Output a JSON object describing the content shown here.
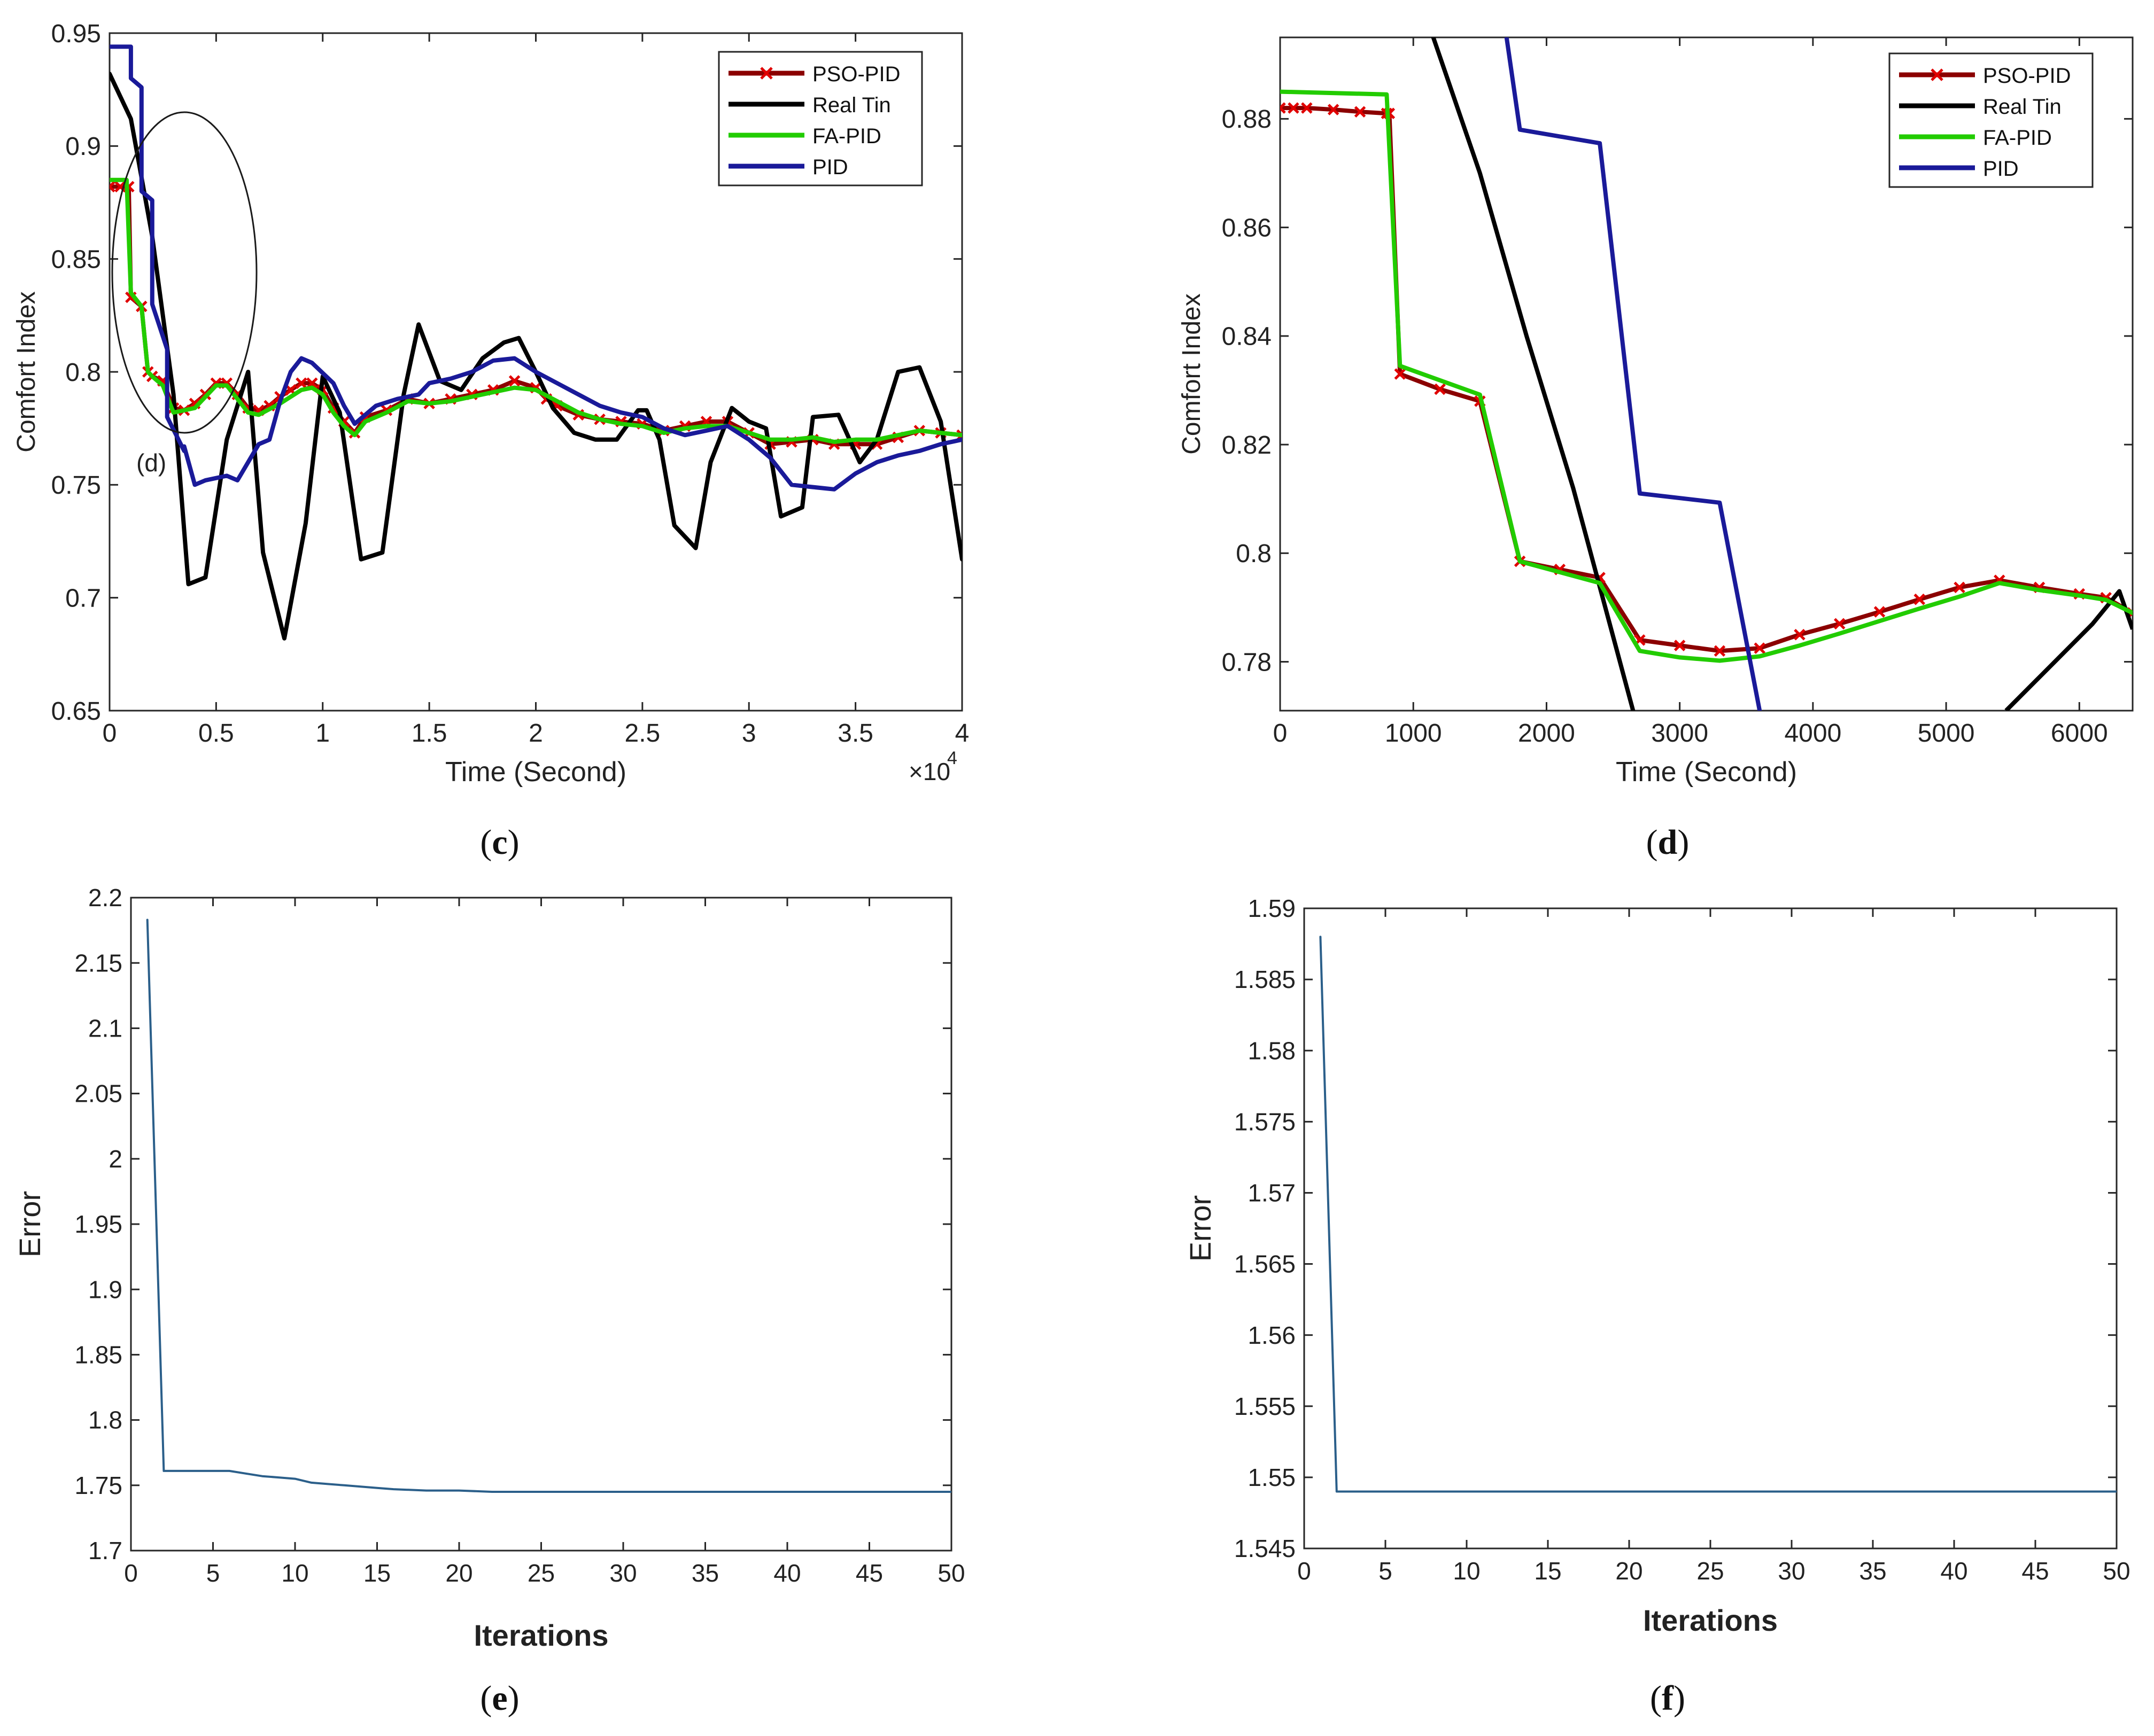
{
  "figure": {
    "panels": [
      {
        "id": "c",
        "caption_open": "(",
        "caption_letter": "c",
        "caption_close": ")"
      },
      {
        "id": "d",
        "caption_open": "(",
        "caption_letter": "d",
        "caption_close": ")"
      },
      {
        "id": "e",
        "caption_open": "(",
        "caption_letter": "e",
        "caption_close": ")"
      },
      {
        "id": "f",
        "caption_open": "(",
        "caption_letter": "f",
        "caption_close": ")"
      }
    ]
  },
  "chart_data": [
    {
      "panel": "c",
      "type": "line",
      "title": "",
      "xlabel": "Time (Second)",
      "ylabel": "Comfort Index",
      "x_multiplier_label": "×10",
      "x_multiplier_exponent": "4",
      "xlim": [
        0,
        4
      ],
      "ylim": [
        0.65,
        0.95
      ],
      "xticks": [
        0,
        0.5,
        1,
        1.5,
        2,
        2.5,
        3,
        3.5,
        4
      ],
      "xtick_labels": [
        "0",
        "0.5",
        "1",
        "1.5",
        "2",
        "2.5",
        "3",
        "3.5",
        "4"
      ],
      "yticks": [
        0.65,
        0.7,
        0.75,
        0.8,
        0.85,
        0.9,
        0.95
      ],
      "ytick_labels": [
        "0.65",
        "0.7",
        "0.75",
        "0.8",
        "0.85",
        "0.9",
        "0.95"
      ],
      "legend_position": "top-right",
      "annotation": "(d)",
      "series": [
        {
          "name": "PSO-PID",
          "color": "#8b0000",
          "marker": "x",
          "marker_color": "#e00000",
          "x": [
            0,
            0.05,
            0.09,
            0.1,
            0.15,
            0.18,
            0.2,
            0.25,
            0.3,
            0.35,
            0.4,
            0.45,
            0.5,
            0.55,
            0.6,
            0.65,
            0.7,
            0.75,
            0.8,
            0.85,
            0.9,
            0.95,
            1.0,
            1.05,
            1.1,
            1.15,
            1.2,
            1.3,
            1.4,
            1.5,
            1.6,
            1.7,
            1.8,
            1.9,
            2.0,
            2.05,
            2.1,
            2.2,
            2.3,
            2.4,
            2.5,
            2.6,
            2.7,
            2.8,
            2.9,
            3.0,
            3.1,
            3.2,
            3.3,
            3.4,
            3.5,
            3.6,
            3.7,
            3.8,
            3.9,
            4.0
          ],
          "y": [
            0.882,
            0.882,
            0.882,
            0.833,
            0.829,
            0.8,
            0.798,
            0.796,
            0.784,
            0.783,
            0.786,
            0.79,
            0.795,
            0.795,
            0.79,
            0.784,
            0.783,
            0.785,
            0.789,
            0.792,
            0.795,
            0.795,
            0.792,
            0.784,
            0.778,
            0.773,
            0.78,
            0.783,
            0.788,
            0.786,
            0.788,
            0.79,
            0.792,
            0.796,
            0.793,
            0.788,
            0.785,
            0.781,
            0.779,
            0.778,
            0.777,
            0.774,
            0.776,
            0.778,
            0.778,
            0.773,
            0.768,
            0.769,
            0.77,
            0.768,
            0.768,
            0.768,
            0.771,
            0.774,
            0.773,
            0.772
          ]
        },
        {
          "name": "Real Tin",
          "color": "#000000",
          "x": [
            0,
            0.1,
            0.2,
            0.3,
            0.37,
            0.45,
            0.55,
            0.65,
            0.72,
            0.82,
            0.92,
            1.0,
            1.08,
            1.18,
            1.28,
            1.38,
            1.45,
            1.55,
            1.65,
            1.75,
            1.85,
            1.92,
            2.0,
            2.08,
            2.18,
            2.28,
            2.38,
            2.48,
            2.52,
            2.58,
            2.65,
            2.75,
            2.82,
            2.92,
            3.0,
            3.08,
            3.15,
            3.25,
            3.3,
            3.42,
            3.52,
            3.6,
            3.7,
            3.8,
            3.9,
            4.0
          ],
          "y": [
            0.932,
            0.912,
            0.86,
            0.79,
            0.706,
            0.709,
            0.77,
            0.8,
            0.72,
            0.682,
            0.733,
            0.798,
            0.782,
            0.717,
            0.72,
            0.79,
            0.821,
            0.796,
            0.792,
            0.806,
            0.813,
            0.815,
            0.8,
            0.784,
            0.773,
            0.77,
            0.77,
            0.783,
            0.783,
            0.77,
            0.732,
            0.722,
            0.76,
            0.784,
            0.778,
            0.775,
            0.736,
            0.74,
            0.78,
            0.781,
            0.76,
            0.77,
            0.8,
            0.802,
            0.778,
            0.717
          ]
        },
        {
          "name": "FA-PID",
          "color": "#22cc00",
          "x": [
            0,
            0.08,
            0.1,
            0.15,
            0.18,
            0.2,
            0.25,
            0.3,
            0.4,
            0.5,
            0.55,
            0.6,
            0.65,
            0.7,
            0.8,
            0.9,
            0.95,
            1.0,
            1.05,
            1.1,
            1.15,
            1.2,
            1.3,
            1.4,
            1.5,
            1.6,
            1.7,
            1.8,
            1.9,
            2.0,
            2.1,
            2.2,
            2.3,
            2.4,
            2.5,
            2.6,
            2.7,
            2.8,
            2.9,
            3.0,
            3.1,
            3.2,
            3.3,
            3.4,
            3.5,
            3.6,
            3.7,
            3.8,
            3.9,
            4.0
          ],
          "y": [
            0.885,
            0.885,
            0.835,
            0.829,
            0.8,
            0.798,
            0.794,
            0.782,
            0.784,
            0.794,
            0.794,
            0.788,
            0.782,
            0.781,
            0.786,
            0.792,
            0.793,
            0.79,
            0.782,
            0.776,
            0.772,
            0.778,
            0.782,
            0.787,
            0.786,
            0.787,
            0.789,
            0.791,
            0.793,
            0.792,
            0.787,
            0.782,
            0.779,
            0.777,
            0.776,
            0.773,
            0.775,
            0.776,
            0.776,
            0.773,
            0.77,
            0.77,
            0.771,
            0.769,
            0.77,
            0.77,
            0.772,
            0.774,
            0.773,
            0.772
          ]
        },
        {
          "name": "PID",
          "color": "#1a1a99",
          "x": [
            0,
            0.1,
            0.1,
            0.15,
            0.15,
            0.2,
            0.2,
            0.27,
            0.27,
            0.35,
            0.35,
            0.4,
            0.45,
            0.5,
            0.55,
            0.6,
            0.7,
            0.75,
            0.8,
            0.85,
            0.9,
            0.95,
            1.05,
            1.1,
            1.15,
            1.25,
            1.35,
            1.45,
            1.5,
            1.6,
            1.7,
            1.8,
            1.9,
            2.0,
            2.1,
            2.2,
            2.3,
            2.4,
            2.5,
            2.6,
            2.7,
            2.8,
            2.9,
            3.0,
            3.1,
            3.2,
            3.3,
            3.4,
            3.5,
            3.6,
            3.7,
            3.8,
            3.9,
            4.0
          ],
          "y": [
            0.944,
            0.944,
            0.93,
            0.926,
            0.88,
            0.876,
            0.83,
            0.81,
            0.78,
            0.765,
            0.767,
            0.75,
            0.752,
            0.753,
            0.754,
            0.752,
            0.768,
            0.77,
            0.787,
            0.8,
            0.806,
            0.804,
            0.795,
            0.785,
            0.777,
            0.785,
            0.788,
            0.79,
            0.795,
            0.797,
            0.8,
            0.805,
            0.806,
            0.8,
            0.795,
            0.79,
            0.785,
            0.782,
            0.78,
            0.775,
            0.772,
            0.774,
            0.776,
            0.77,
            0.762,
            0.75,
            0.749,
            0.748,
            0.755,
            0.76,
            0.763,
            0.765,
            0.768,
            0.77
          ]
        }
      ]
    },
    {
      "panel": "d",
      "type": "line",
      "title": "",
      "xlabel": "Time (Second)",
      "ylabel": "Comfort Index",
      "xlim": [
        0,
        6400
      ],
      "ylim": [
        0.771,
        0.895
      ],
      "xticks": [
        0,
        1000,
        2000,
        3000,
        4000,
        5000,
        6000
      ],
      "xtick_labels": [
        "0",
        "1000",
        "2000",
        "3000",
        "4000",
        "5000",
        "6000"
      ],
      "yticks": [
        0.78,
        0.8,
        0.82,
        0.84,
        0.86,
        0.88
      ],
      "ytick_labels": [
        "0.78",
        "0.8",
        "0.82",
        "0.84",
        "0.86",
        "0.88"
      ],
      "legend_position": "top-right",
      "series": [
        {
          "name": "PSO-PID",
          "color": "#8b0000",
          "marker": "x",
          "marker_color": "#e00000",
          "x": [
            0,
            100,
            200,
            400,
            600,
            800,
            820,
            900,
            1200,
            1500,
            1800,
            2100,
            2400,
            2700,
            3000,
            3300,
            3600,
            3900,
            4200,
            4500,
            4800,
            5100,
            5400,
            5700,
            6000,
            6200,
            6400
          ],
          "y": [
            0.882,
            0.882,
            0.882,
            0.8817,
            0.8813,
            0.881,
            0.881,
            0.833,
            0.8302,
            0.828,
            0.7985,
            0.797,
            0.7955,
            0.784,
            0.783,
            0.782,
            0.7825,
            0.785,
            0.787,
            0.7892,
            0.7915,
            0.7937,
            0.795,
            0.7937,
            0.7925,
            0.7918,
            0.789
          ]
        },
        {
          "name": "Real Tin",
          "color": "#000000",
          "x": [
            1150,
            1500,
            1850,
            2200,
            2650
          ],
          "y": [
            0.895,
            0.87,
            0.84,
            0.812,
            0.771
          ],
          "x2": [
            5450,
            6100,
            6300,
            6400
          ],
          "y2": [
            0.771,
            0.787,
            0.793,
            0.786
          ]
        },
        {
          "name": "FA-PID",
          "color": "#22cc00",
          "x": [
            0,
            800,
            900,
            1500,
            1800,
            2400,
            2700,
            3000,
            3300,
            3600,
            3900,
            4200,
            4500,
            4800,
            5100,
            5400,
            5700,
            6000,
            6200,
            6400
          ],
          "y": [
            0.885,
            0.8845,
            0.8345,
            0.8292,
            0.7985,
            0.7945,
            0.782,
            0.7808,
            0.7802,
            0.781,
            0.783,
            0.7852,
            0.7875,
            0.7898,
            0.792,
            0.7945,
            0.7932,
            0.7922,
            0.7914,
            0.789
          ]
        },
        {
          "name": "PID",
          "color": "#1a1a99",
          "x": [
            1700,
            1800,
            2400,
            2700,
            3300,
            3600
          ],
          "y": [
            0.895,
            0.878,
            0.8755,
            0.811,
            0.8093,
            0.771
          ]
        }
      ]
    },
    {
      "panel": "e",
      "type": "line",
      "title": "",
      "xlabel": "Iterations",
      "ylabel": "Error",
      "xlim": [
        0,
        50
      ],
      "ylim": [
        1.7,
        2.2
      ],
      "xticks": [
        0,
        5,
        10,
        15,
        20,
        25,
        30,
        35,
        40,
        45,
        50
      ],
      "xtick_labels": [
        "0",
        "5",
        "10",
        "15",
        "20",
        "25",
        "30",
        "35",
        "40",
        "45",
        "50"
      ],
      "yticks": [
        1.7,
        1.75,
        1.8,
        1.85,
        1.9,
        1.95,
        2.0,
        2.05,
        2.1,
        2.15,
        2.2
      ],
      "ytick_labels": [
        "1.7",
        "1.75",
        "1.8",
        "1.85",
        "1.9",
        "1.95",
        "2",
        "2.05",
        "2.1",
        "2.15",
        "2.2"
      ],
      "series": [
        {
          "name": "Error",
          "x": [
            1,
            2,
            3,
            4,
            5,
            6,
            7,
            8,
            9,
            10,
            11,
            12,
            13,
            14,
            15,
            16,
            18,
            20,
            22,
            24,
            26,
            30,
            35,
            40,
            45,
            50
          ],
          "y": [
            2.183,
            1.761,
            1.761,
            1.761,
            1.761,
            1.761,
            1.759,
            1.757,
            1.756,
            1.755,
            1.752,
            1.751,
            1.75,
            1.749,
            1.748,
            1.747,
            1.746,
            1.746,
            1.745,
            1.745,
            1.745,
            1.745,
            1.745,
            1.745,
            1.745,
            1.745
          ]
        }
      ]
    },
    {
      "panel": "f",
      "type": "line",
      "title": "",
      "xlabel": "Iterations",
      "ylabel": "Error",
      "xlim": [
        0,
        50
      ],
      "ylim": [
        1.545,
        1.59
      ],
      "xticks": [
        0,
        5,
        10,
        15,
        20,
        25,
        30,
        35,
        40,
        45,
        50
      ],
      "xtick_labels": [
        "0",
        "5",
        "10",
        "15",
        "20",
        "25",
        "30",
        "35",
        "40",
        "45",
        "50"
      ],
      "yticks": [
        1.545,
        1.55,
        1.555,
        1.56,
        1.565,
        1.57,
        1.575,
        1.58,
        1.585,
        1.59
      ],
      "ytick_labels": [
        "1.545",
        "1.55",
        "1.555",
        "1.56",
        "1.565",
        "1.57",
        "1.575",
        "1.58",
        "1.585",
        "1.59"
      ],
      "series": [
        {
          "name": "Error",
          "x": [
            1,
            2,
            3,
            50
          ],
          "y": [
            1.588,
            1.549,
            1.549,
            1.549
          ]
        }
      ]
    }
  ]
}
